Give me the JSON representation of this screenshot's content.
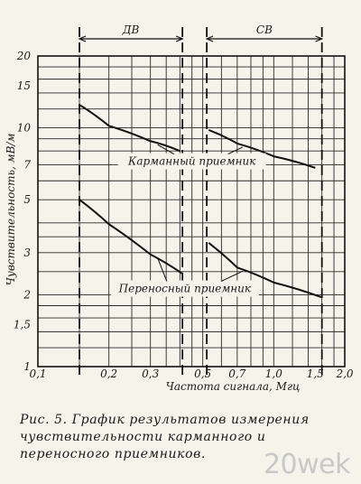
{
  "chart_data": {
    "type": "line",
    "x_scale": "log",
    "y_scale": "log",
    "xlabel": "Частота сигнала, Мгц",
    "ylabel": "Чувствительность, мВ/м",
    "xlim": [
      0.1,
      2.0
    ],
    "ylim": [
      1,
      20
    ],
    "grid": true,
    "x_ticks": [
      {
        "value": 0.1,
        "label": "0,1"
      },
      {
        "value": 0.2,
        "label": "0,2"
      },
      {
        "value": 0.3,
        "label": "0,3"
      },
      {
        "value": 0.5,
        "label": "0,5"
      },
      {
        "value": 0.7,
        "label": "0,7"
      },
      {
        "value": 1.0,
        "label": "1,0"
      },
      {
        "value": 1.5,
        "label": "1,5"
      },
      {
        "value": 2.0,
        "label": "2,0"
      }
    ],
    "x_grid": [
      0.1,
      0.15,
      0.2,
      0.25,
      0.3,
      0.35,
      0.4,
      0.45,
      0.5,
      0.6,
      0.7,
      0.8,
      0.9,
      1.0,
      1.2,
      1.4,
      1.6,
      1.8,
      2.0
    ],
    "y_ticks": [
      {
        "value": 1,
        "label": "1"
      },
      {
        "value": 1.5,
        "label": "1,5"
      },
      {
        "value": 2,
        "label": "2"
      },
      {
        "value": 3,
        "label": "3"
      },
      {
        "value": 5,
        "label": "5"
      },
      {
        "value": 7,
        "label": "7"
      },
      {
        "value": 10,
        "label": "10"
      },
      {
        "value": 15,
        "label": "15"
      },
      {
        "value": 20,
        "label": "20"
      }
    ],
    "y_grid": [
      1,
      1.2,
      1.4,
      1.6,
      1.8,
      2,
      2.5,
      3,
      3.5,
      4,
      5,
      6,
      7,
      8,
      9,
      10,
      12,
      14,
      16,
      18,
      20
    ],
    "bands": [
      {
        "label": "ДВ",
        "from": 0.15,
        "to": 0.41
      },
      {
        "label": "СВ",
        "from": 0.52,
        "to": 1.6
      }
    ],
    "series": [
      {
        "name": "Карманный приемник",
        "x": [
          0.15,
          0.2,
          0.3,
          0.4
        ],
        "y": [
          12.5,
          10.2,
          8.8,
          8.0
        ]
      },
      {
        "name": "Карманный приемник",
        "x": [
          0.53,
          0.7,
          1.0,
          1.5
        ],
        "y": [
          9.8,
          8.6,
          7.6,
          6.8
        ]
      },
      {
        "name": "Переносный приемник",
        "x": [
          0.15,
          0.2,
          0.3,
          0.41
        ],
        "y": [
          5.0,
          3.95,
          2.95,
          2.45
        ]
      },
      {
        "name": "Переносный приемник",
        "x": [
          0.53,
          0.7,
          1.0,
          1.6
        ],
        "y": [
          3.3,
          2.6,
          2.25,
          1.95
        ]
      }
    ],
    "annotations": [
      {
        "text": "Карманный приемник",
        "x": 0.45,
        "y": 7.0
      },
      {
        "text": "Переносный приемник",
        "x": 0.42,
        "y": 2.05
      }
    ]
  },
  "caption": "Рис. 5. График результатов измерения чувствительности карманного и переносного приемников.",
  "watermark": "20wek"
}
